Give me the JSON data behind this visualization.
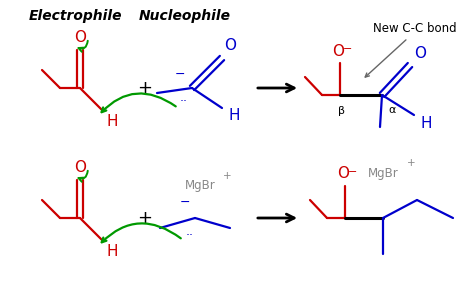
{
  "bg_color": "#ffffff",
  "title_electrophile": "Electrophile",
  "title_nucleophile": "Nucleophile",
  "annotation_new_bond": "New C-C bond",
  "colors": {
    "red": "#cc0000",
    "blue": "#0000cc",
    "green": "#009900",
    "black": "#000000",
    "gray": "#888888",
    "dark_gray": "#666666"
  },
  "figsize": [
    4.74,
    2.98
  ],
  "dpi": 100
}
